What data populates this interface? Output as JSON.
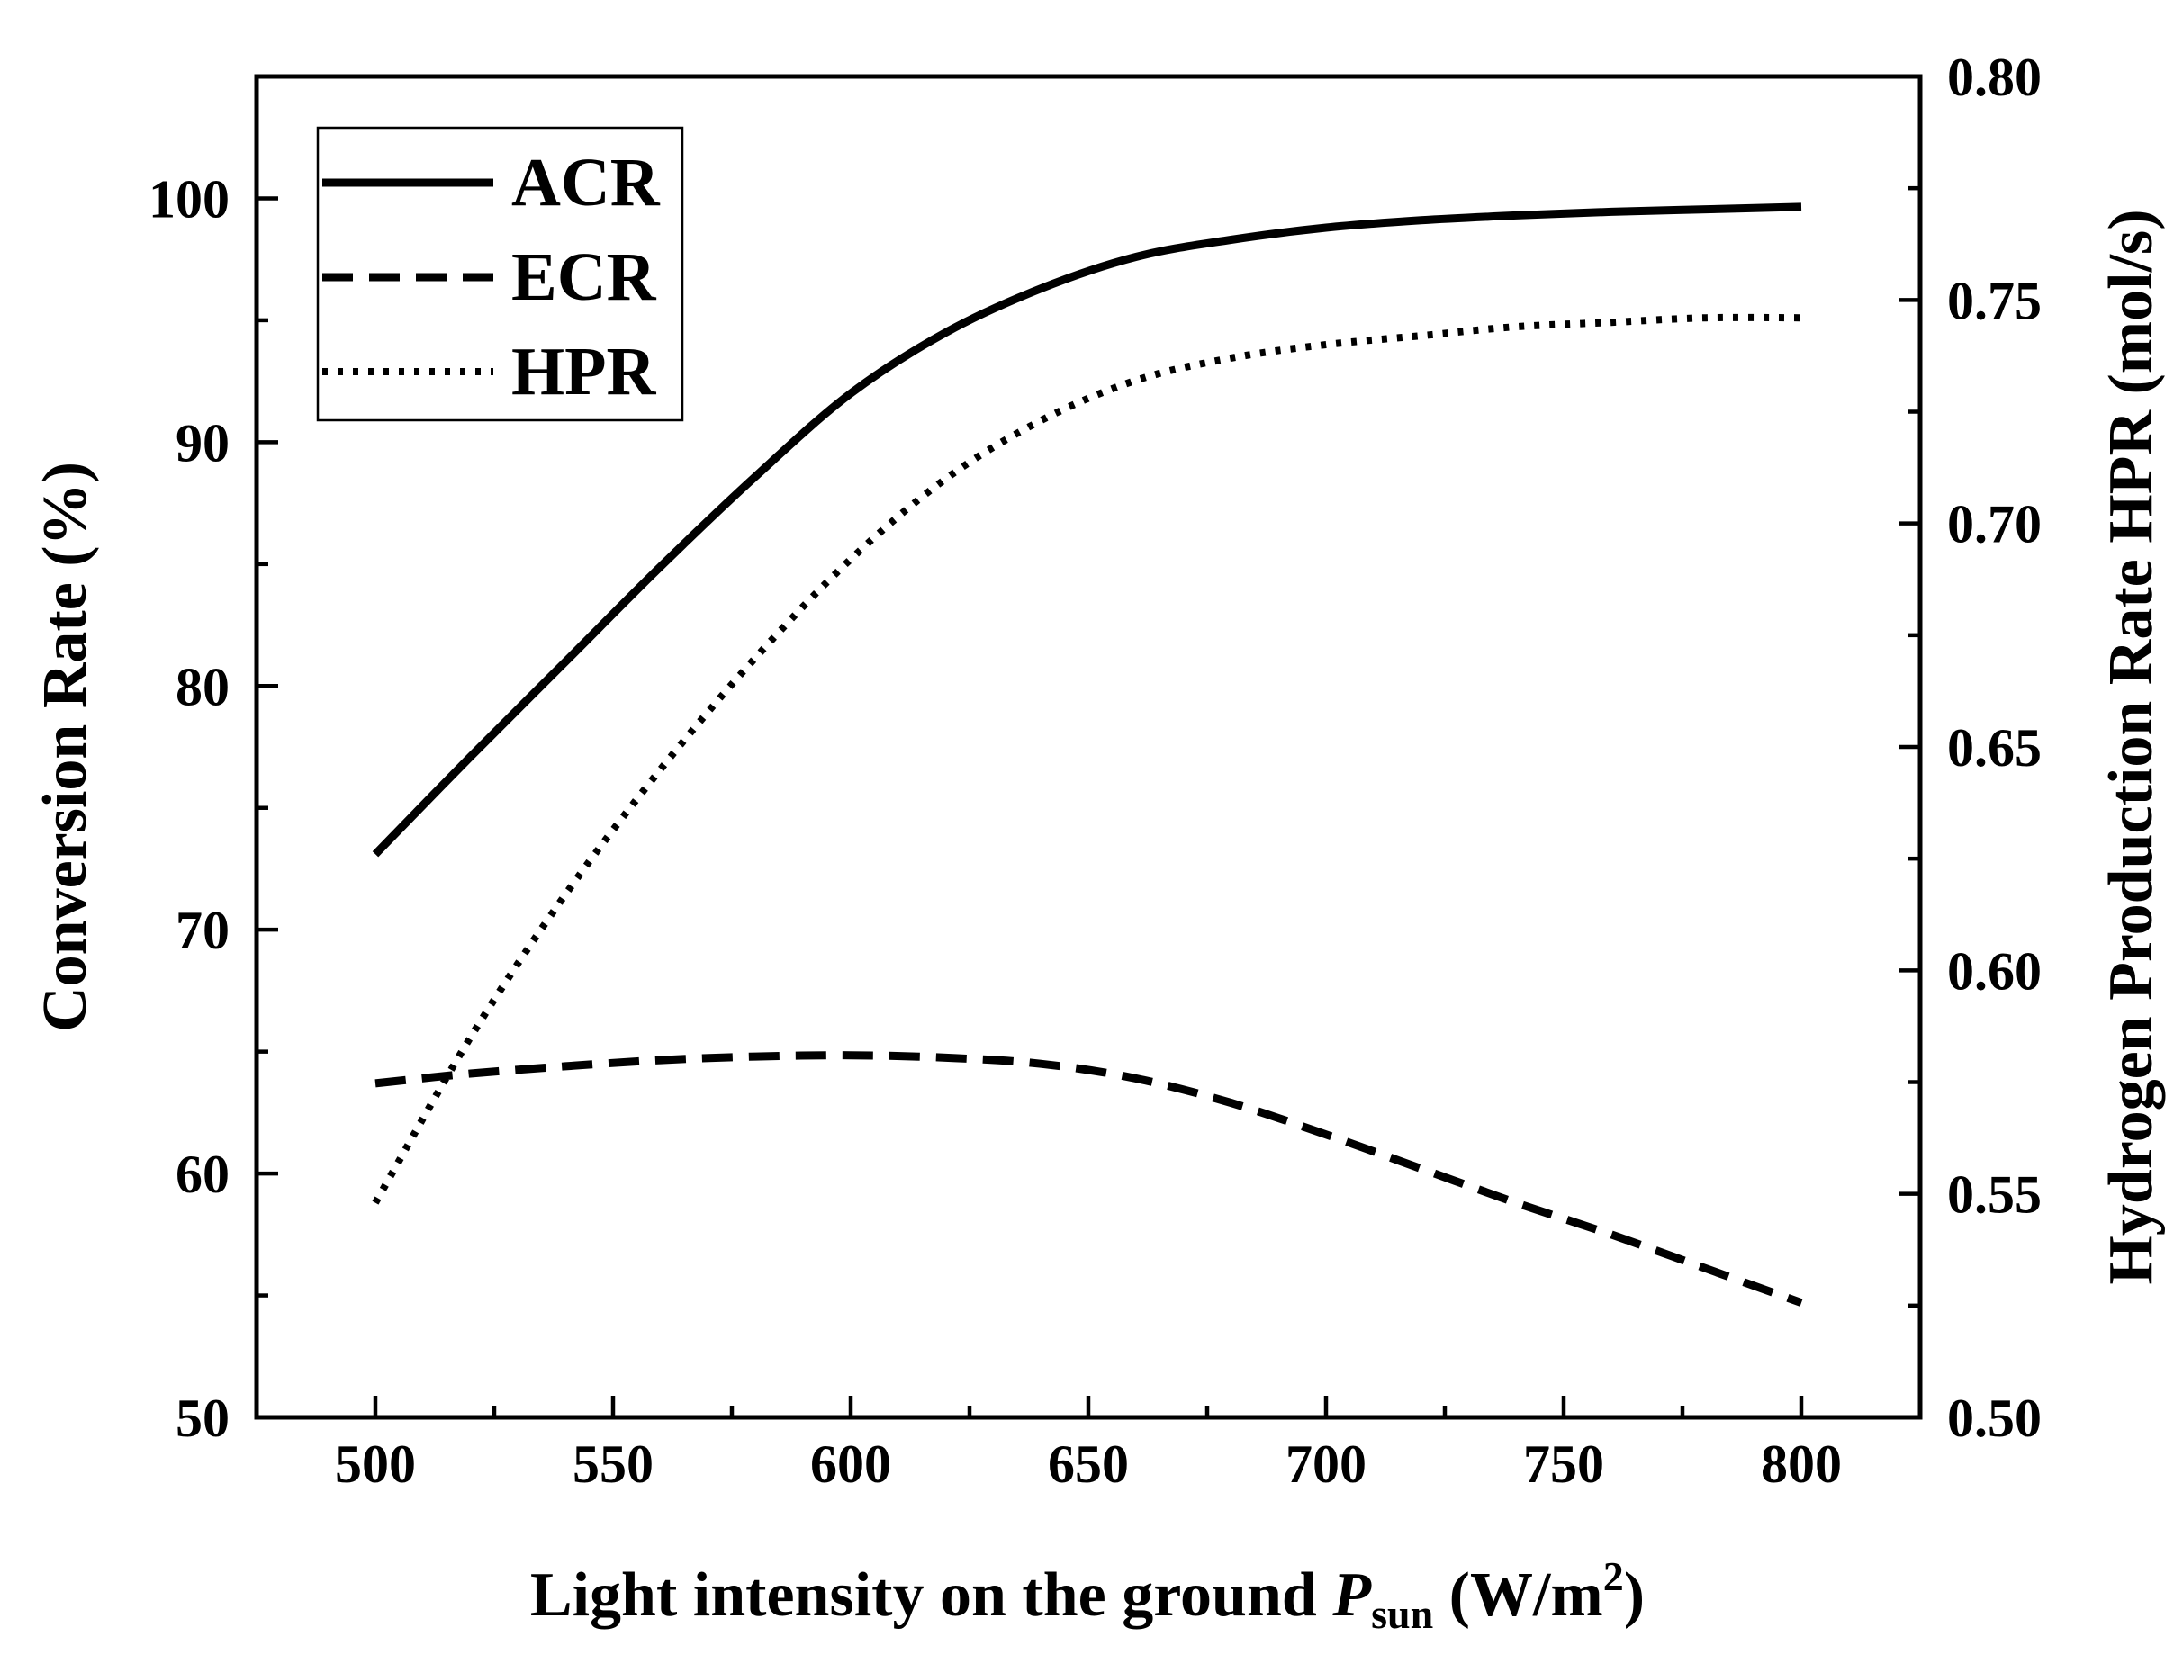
{
  "chart_data": {
    "type": "line",
    "title": "",
    "x": [
      500,
      520,
      540,
      560,
      580,
      600,
      620,
      640,
      660,
      680,
      700,
      720,
      740,
      760,
      780,
      800
    ],
    "xlim": [
      475,
      825
    ],
    "xticks": [
      "500",
      "550",
      "600",
      "650",
      "700",
      "750",
      "800"
    ],
    "xlabel_parts": {
      "prefix": "Light intensity on the ground ",
      "symbol": "P",
      "subscript": "sun",
      "units_open": " (W/m",
      "superscript": "2",
      "units_close": ")"
    },
    "ylabel_left": "Conversion Rate (%)",
    "ylim_left": [
      50,
      105
    ],
    "yticks_left": [
      "50",
      "60",
      "70",
      "80",
      "90",
      "100"
    ],
    "ylabel_right": "Hydrogen Production Rate HPR (mol/s)",
    "ylim_right": [
      0.5,
      0.8
    ],
    "yticks_right": [
      "0.50",
      "0.55",
      "0.60",
      "0.65",
      "0.70",
      "0.75",
      "0.80"
    ],
    "legend_position": "top-left",
    "series": [
      {
        "name": "ACR",
        "axis": "left",
        "style": "solid",
        "values": [
          73.1,
          77.1,
          81.0,
          84.9,
          88.6,
          92.0,
          94.5,
          96.3,
          97.6,
          98.3,
          98.8,
          99.1,
          99.3,
          99.45,
          99.55,
          99.65
        ]
      },
      {
        "name": "ECR",
        "axis": "left",
        "style": "dashed",
        "values": [
          63.7,
          64.1,
          64.4,
          64.65,
          64.8,
          64.85,
          64.75,
          64.5,
          63.9,
          62.9,
          61.6,
          60.2,
          58.8,
          57.5,
          56.1,
          54.7
        ]
      },
      {
        "name": "HPR",
        "axis": "right",
        "style": "dotted",
        "values": [
          0.548,
          0.585,
          0.617,
          0.645,
          0.67,
          0.692,
          0.71,
          0.723,
          0.732,
          0.737,
          0.74,
          0.742,
          0.744,
          0.745,
          0.746,
          0.746
        ]
      }
    ],
    "colors": {
      "line": "#000000",
      "background": "#ffffff"
    }
  }
}
